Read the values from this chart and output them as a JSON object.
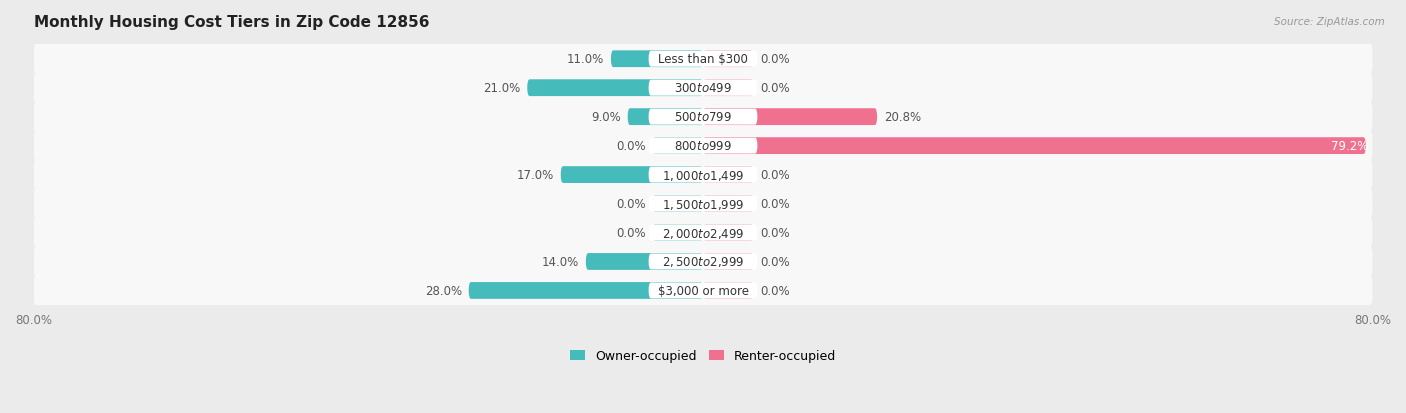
{
  "title": "Monthly Housing Cost Tiers in Zip Code 12856",
  "source": "Source: ZipAtlas.com",
  "categories": [
    "Less than $300",
    "$300 to $499",
    "$500 to $799",
    "$800 to $999",
    "$1,000 to $1,499",
    "$1,500 to $1,999",
    "$2,000 to $2,499",
    "$2,500 to $2,999",
    "$3,000 or more"
  ],
  "owner_values": [
    11.0,
    21.0,
    9.0,
    0.0,
    17.0,
    0.0,
    0.0,
    14.0,
    28.0
  ],
  "renter_values": [
    0.0,
    0.0,
    20.8,
    79.2,
    0.0,
    0.0,
    0.0,
    0.0,
    0.0
  ],
  "owner_color": "#45BBBB",
  "renter_color": "#F07090",
  "owner_color_light": "#85D0D0",
  "renter_color_light": "#F4AABC",
  "bg_color": "#EBEBEB",
  "row_bg_color": "#F8F8F8",
  "axis_limit": 80.0,
  "small_bar_width": 6.0,
  "title_fontsize": 11,
  "label_fontsize": 8.5,
  "value_fontsize": 8.5,
  "tick_fontsize": 8.5,
  "legend_fontsize": 9
}
